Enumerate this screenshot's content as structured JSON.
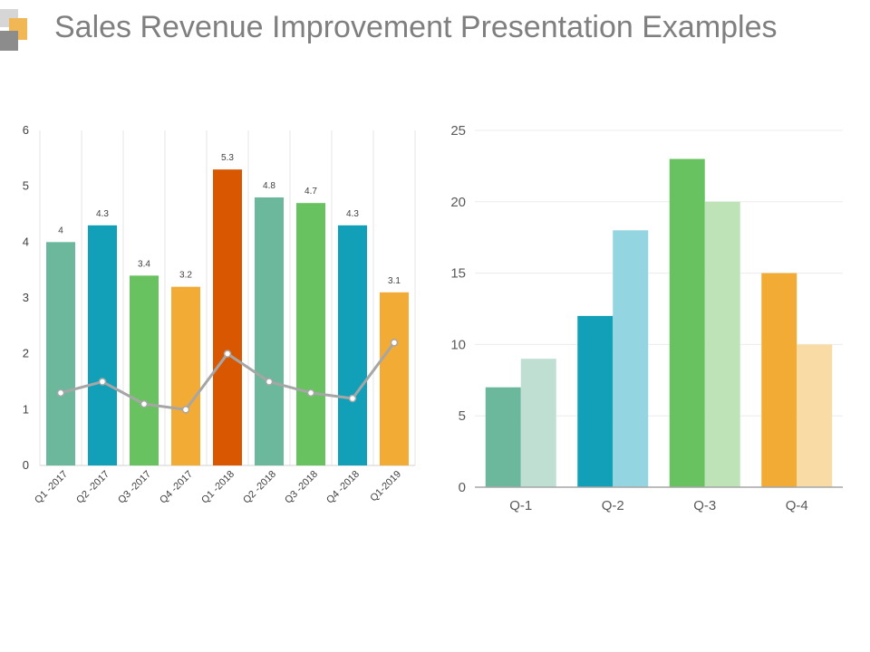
{
  "header": {
    "title": "Sales Revenue Improvement Presentation Examples",
    "logo_colors": [
      "#d6d6d6",
      "#f2b755",
      "#8c8c8c"
    ]
  },
  "chart_data": [
    {
      "type": "bar",
      "categories": [
        "Q1 -2017",
        "Q2 -2017",
        "Q3 -2017",
        "Q4 -2017",
        "Q1 -2018",
        "Q2 -2018",
        "Q3 -2018",
        "Q4 -2018",
        "Q1-2019"
      ],
      "series": [
        {
          "values": [
            4,
            4.3,
            3.4,
            3.2,
            5.3,
            4.8,
            4.7,
            4.3,
            3.1
          ],
          "colors": [
            "#6bb89d",
            "#11a0b8",
            "#69c260",
            "#f2ab35",
            "#d95700",
            "#6bb89d",
            "#69c260",
            "#11a0b8",
            "#f2ab35"
          ],
          "data_labels": [
            "4",
            "4.3",
            "3.4",
            "3.2",
            "5.3",
            "4.8",
            "4.7",
            "4.3",
            "3.1"
          ]
        },
        {
          "type": "line",
          "color": "#a6a6a6",
          "values": [
            1.3,
            1.5,
            1.1,
            1.0,
            2.0,
            1.5,
            1.3,
            1.2,
            2.2
          ]
        }
      ],
      "yticks": [
        "0",
        "1",
        "2",
        "3",
        "4",
        "5",
        "6"
      ],
      "ylim": [
        0,
        6
      ],
      "grid": "vertical"
    },
    {
      "type": "bar",
      "categories": [
        "Q-1",
        "Q-2",
        "Q-3",
        "Q-4"
      ],
      "series": [
        {
          "values": [
            7,
            12,
            23,
            15
          ],
          "colors": [
            "#6bb89d",
            "#11a0b8",
            "#69c260",
            "#f2ab35"
          ]
        },
        {
          "values": [
            9,
            18,
            20,
            10
          ],
          "colors": [
            "#bfdfd3",
            "#93d5e0",
            "#bde3b7",
            "#f9dba6"
          ]
        }
      ],
      "yticks": [
        "0",
        "5",
        "10",
        "15",
        "20",
        "25"
      ],
      "ylim": [
        0,
        25
      ],
      "grid": "horizontal"
    }
  ]
}
